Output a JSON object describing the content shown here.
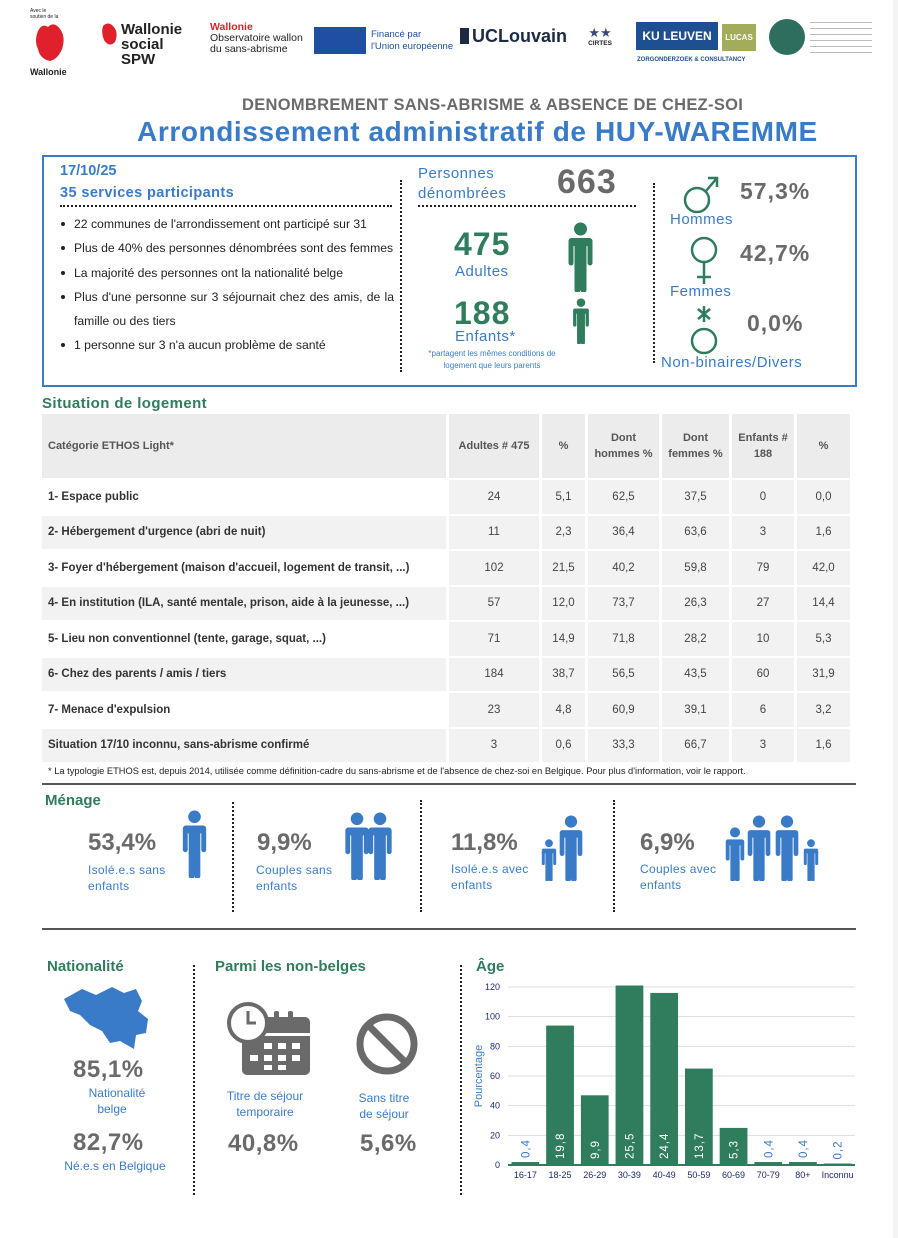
{
  "logos": {
    "wallonie": {
      "support_text": "Avec le soutien de la",
      "name": "Wallonie"
    },
    "wallonie_social": "Wallonie social SPW",
    "observatoire": {
      "line1": "Wallonie",
      "line2": "Observatoire wallon",
      "line3": "du sans-abrisme"
    },
    "eu": {
      "line1": "Financé par",
      "line2": "l'Union européenne"
    },
    "uclouvain": "UCLouvain",
    "cirtes": "CIRTES",
    "kuleuven": "KU LEUVEN",
    "lucas": "LUCAS",
    "lucas_sub": "ZORGONDERZOEK & CONSULTANCY",
    "colors": {
      "wallonie_red": "#e0202a",
      "eu_blue": "#1f4fa0",
      "ku_blue": "#1d4f91",
      "lucas_green": "#a3ac5a",
      "teal": "#2d6e5e"
    }
  },
  "header": {
    "subtitle": "DENOMBREMENT SANS-ABRISME & ABSENCE DE CHEZ-SOI",
    "title": "Arrondissement administratif de HUY-WAREMME"
  },
  "summary": {
    "date": "17/10/25",
    "services": "35 services participants",
    "bullets": [
      "22 communes de l'arrondissement ont participé sur 31",
      "Plus de 40% des personnes dénombrées sont des femmes",
      "La majorité des personnes ont la nationalité belge",
      "Plus d'une personne sur 3 séjournait chez des amis, de la famille ou des tiers",
      "1 personne sur 3 n'a aucun problème de santé"
    ],
    "counted_label_1": "Personnes",
    "counted_label_2": "dénombrées",
    "counted_value": "663",
    "adults_value": "475",
    "adults_label": "Adultes",
    "children_value": "188",
    "children_label": "Enfants*",
    "children_note_1": "*partagent les mêmes conditions de",
    "children_note_2": "logement que leurs parents",
    "gender": [
      {
        "label": "Hommes",
        "value": "57,3%",
        "icon": "male-symbol"
      },
      {
        "label": "Femmes",
        "value": "42,7%",
        "icon": "female-symbol"
      },
      {
        "label": "Non-binaires/Divers",
        "value": "0,0%",
        "icon": "nonbinary-symbol"
      }
    ]
  },
  "housing": {
    "title": "Situation de logement",
    "columns": [
      "Catégorie ETHOS Light*",
      "Adultes # 475",
      "%",
      "Dont hommes %",
      "Dont femmes %",
      "Enfants # 188",
      "%"
    ],
    "rows": [
      [
        "1- Espace public",
        "24",
        "5,1",
        "62,5",
        "37,5",
        "0",
        "0,0"
      ],
      [
        "2- Hébergement d'urgence (abri de nuit)",
        "11",
        "2,3",
        "36,4",
        "63,6",
        "3",
        "1,6"
      ],
      [
        "3- Foyer d'hébergement (maison d'accueil, logement de transit, ...)",
        "102",
        "21,5",
        "40,2",
        "59,8",
        "79",
        "42,0"
      ],
      [
        "4- En institution (ILA, santé mentale, prison, aide à  la jeunesse, ...)",
        "57",
        "12,0",
        "73,7",
        "26,3",
        "27",
        "14,4"
      ],
      [
        "5- Lieu non conventionnel (tente, garage, squat, ...)",
        "71",
        "14,9",
        "71,8",
        "28,2",
        "10",
        "5,3"
      ],
      [
        "6- Chez des parents / amis / tiers",
        "184",
        "38,7",
        "56,5",
        "43,5",
        "60",
        "31,9"
      ],
      [
        "7- Menace d'expulsion",
        "23",
        "4,8",
        "60,9",
        "39,1",
        "6",
        "3,2"
      ],
      [
        "Situation 17/10 inconnu, sans-abrisme confirmé",
        "3",
        "0,6",
        "33,3",
        "66,7",
        "3",
        "1,6"
      ]
    ],
    "footnote": "* La typologie ETHOS est, depuis 2014, utilisée comme définition-cadre du sans-abrisme et de l'absence de chez-soi en Belgique. Pour plus d'information, voir le rapport."
  },
  "household": {
    "title": "Ménage",
    "items": [
      {
        "value": "53,4%",
        "label_1": "Isolé.e.s sans",
        "label_2": "enfants"
      },
      {
        "value": "9,9%",
        "label_1": "Couples sans",
        "label_2": "enfants"
      },
      {
        "value": "11,8%",
        "label_1": "Isolé.e.s avec",
        "label_2": "enfants"
      },
      {
        "value": "6,9%",
        "label_1": "Couples avec",
        "label_2": "enfants"
      }
    ]
  },
  "nationality": {
    "title": "Nationalité",
    "belgian_value": "85,1%",
    "belgian_label_1": "Nationalité",
    "belgian_label_2": "belge",
    "born_value": "82,7%",
    "born_label": "Né.e.s en Belgique"
  },
  "non_belgian": {
    "title": "Parmi les non-belges",
    "temp_label_1": "Titre de séjour",
    "temp_label_2": "temporaire",
    "temp_value": "40,8%",
    "none_label_1": "Sans titre",
    "none_label_2": "de séjour",
    "none_value": "5,6%"
  },
  "colors": {
    "blue": "#3a7bc8",
    "green": "#2f7d5d",
    "gray": "#6a6a6a"
  },
  "chart_data": {
    "type": "bar",
    "title": "Âge",
    "ylabel": "Pourcentage",
    "xlabel": "",
    "categories": [
      "16-17",
      "18-25",
      "26-29",
      "30-39",
      "40-49",
      "50-59",
      "60-69",
      "70-79",
      "80+",
      "Inconnu"
    ],
    "values": [
      2,
      94,
      47,
      121,
      116,
      65,
      25,
      2,
      2,
      1
    ],
    "data_labels": [
      "0,4",
      "19,8",
      "9,9",
      "25,5",
      "24,4",
      "13,7",
      "5,3",
      "0,4",
      "0,4",
      "0,2"
    ],
    "yticks": [
      "0",
      "20",
      "40",
      "60",
      "80",
      "100",
      "120"
    ],
    "ylim": [
      0,
      125
    ],
    "grid": true,
    "bar_color": "#2f7d5d"
  }
}
